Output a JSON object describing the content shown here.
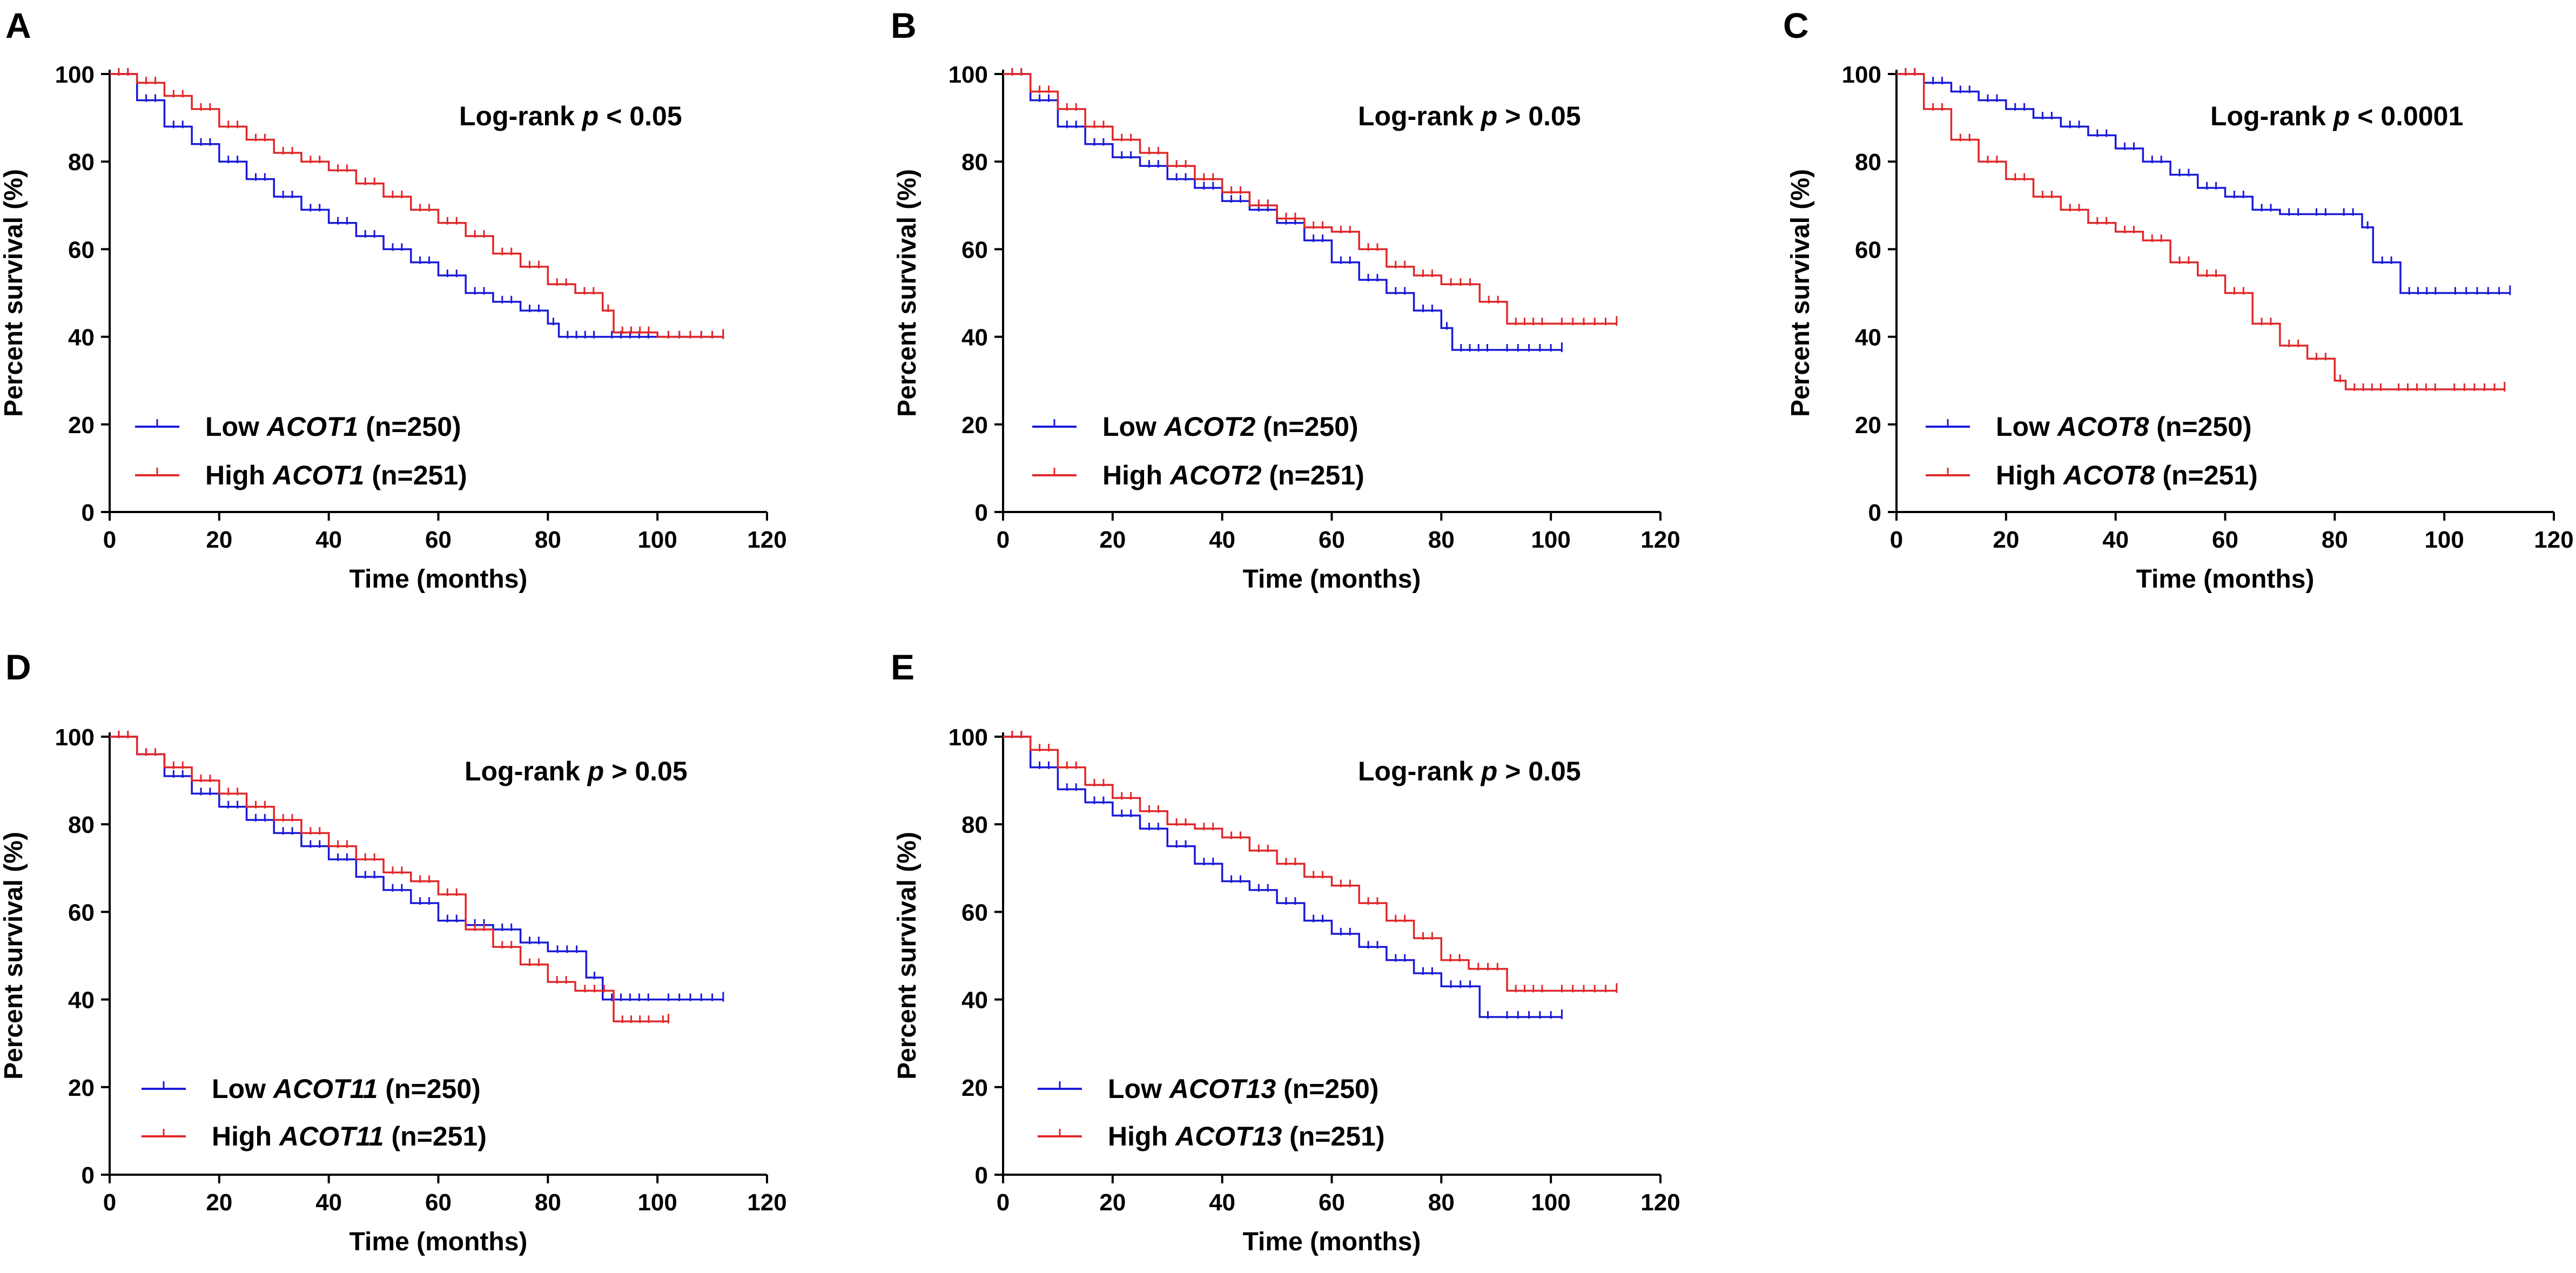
{
  "figure": {
    "colors": {
      "low": "#1a1ad8",
      "high": "#e0282a",
      "axis": "#000000"
    },
    "common": {
      "xlabel": "Time (months)",
      "ylabel": "Percent survival (%)",
      "xticks": [
        "0",
        "20",
        "40",
        "60",
        "80",
        "100",
        "120"
      ],
      "yticks": [
        "0",
        "20",
        "40",
        "60",
        "80",
        "100"
      ]
    }
  },
  "chart_data": [
    {
      "type": "line",
      "panel": "A",
      "title": "",
      "xlabel": "Time (months)",
      "ylabel": "Percent survival (%)",
      "xlim": [
        0,
        120
      ],
      "ylim": [
        0,
        100
      ],
      "annotation": {
        "prefix": "Log-rank ",
        "p": "p",
        "suffix": " < 0.05"
      },
      "series": [
        {
          "name": "Low ACOT1 (n=250)",
          "legend": {
            "prefix": "Low ",
            "gene": "ACOT1",
            "suffix": " (n=250)"
          },
          "color": "#1a1ad8",
          "x": [
            0,
            5,
            10,
            15,
            20,
            25,
            30,
            35,
            40,
            45,
            50,
            55,
            60,
            65,
            70,
            75,
            80,
            82,
            90,
            100,
            112
          ],
          "y": [
            100,
            94,
            88,
            84,
            80,
            76,
            72,
            69,
            66,
            63,
            60,
            57,
            54,
            50,
            48,
            46,
            43,
            40,
            40,
            40,
            40
          ]
        },
        {
          "name": "High ACOT1 (n=251)",
          "legend": {
            "prefix": "High ",
            "gene": "ACOT1",
            "suffix": " (n=251)"
          },
          "color": "#e0282a",
          "x": [
            0,
            5,
            10,
            15,
            20,
            25,
            30,
            35,
            40,
            45,
            50,
            55,
            60,
            65,
            70,
            75,
            80,
            85,
            90,
            92,
            100,
            112
          ],
          "y": [
            100,
            98,
            95,
            92,
            88,
            85,
            82,
            80,
            78,
            75,
            72,
            69,
            66,
            63,
            59,
            56,
            52,
            50,
            46,
            41,
            40,
            40
          ]
        }
      ]
    },
    {
      "type": "line",
      "panel": "B",
      "title": "",
      "xlabel": "Time (months)",
      "ylabel": "Percent survival (%)",
      "xlim": [
        0,
        120
      ],
      "ylim": [
        0,
        100
      ],
      "annotation": {
        "prefix": "Log-rank ",
        "p": "p",
        "suffix": " > 0.05"
      },
      "series": [
        {
          "name": "Low ACOT2 (n=250)",
          "legend": {
            "prefix": "Low ",
            "gene": "ACOT2",
            "suffix": " (n=250)"
          },
          "color": "#1a1ad8",
          "x": [
            0,
            5,
            10,
            15,
            20,
            25,
            30,
            35,
            40,
            45,
            50,
            55,
            60,
            65,
            70,
            75,
            80,
            82,
            90,
            102
          ],
          "y": [
            100,
            94,
            88,
            84,
            81,
            79,
            76,
            74,
            71,
            69,
            66,
            62,
            57,
            53,
            50,
            46,
            42,
            37,
            37,
            37
          ]
        },
        {
          "name": "High ACOT2 (n=251)",
          "legend": {
            "prefix": "High ",
            "gene": "ACOT2",
            "suffix": " (n=251)"
          },
          "color": "#e0282a",
          "x": [
            0,
            5,
            10,
            15,
            20,
            25,
            30,
            35,
            40,
            45,
            50,
            55,
            60,
            65,
            70,
            75,
            80,
            87,
            92,
            100,
            112
          ],
          "y": [
            100,
            96,
            92,
            88,
            85,
            82,
            79,
            76,
            73,
            70,
            67,
            65,
            64,
            60,
            56,
            54,
            52,
            48,
            43,
            43,
            43
          ]
        }
      ]
    },
    {
      "type": "line",
      "panel": "C",
      "title": "",
      "xlabel": "Time (months)",
      "ylabel": "Percent survival (%)",
      "xlim": [
        0,
        120
      ],
      "ylim": [
        0,
        100
      ],
      "annotation": {
        "prefix": "Log-rank ",
        "p": "p",
        "suffix": " < 0.0001"
      },
      "series": [
        {
          "name": "Low ACOT8 (n=250)",
          "legend": {
            "prefix": "Low ",
            "gene": "ACOT8",
            "suffix": " (n=250)"
          },
          "color": "#1a1ad8",
          "x": [
            0,
            5,
            10,
            15,
            20,
            25,
            30,
            35,
            40,
            45,
            50,
            55,
            60,
            65,
            70,
            75,
            80,
            85,
            87,
            92,
            100,
            112
          ],
          "y": [
            100,
            98,
            96,
            94,
            92,
            90,
            88,
            86,
            83,
            80,
            77,
            74,
            72,
            69,
            68,
            68,
            68,
            65,
            57,
            50,
            50,
            50
          ]
        },
        {
          "name": "High ACOT8 (n=251)",
          "legend": {
            "prefix": "High ",
            "gene": "ACOT8",
            "suffix": " (n=251)"
          },
          "color": "#e0282a",
          "x": [
            0,
            5,
            10,
            15,
            20,
            25,
            30,
            35,
            40,
            45,
            50,
            55,
            60,
            65,
            70,
            75,
            80,
            82,
            90,
            100,
            111
          ],
          "y": [
            100,
            92,
            85,
            80,
            76,
            72,
            69,
            66,
            64,
            62,
            57,
            54,
            50,
            43,
            38,
            35,
            30,
            28,
            28,
            28,
            28
          ]
        }
      ]
    },
    {
      "type": "line",
      "panel": "D",
      "title": "",
      "xlabel": "Time (months)",
      "ylabel": "Percent survival (%)",
      "xlim": [
        0,
        120
      ],
      "ylim": [
        0,
        100
      ],
      "annotation": {
        "prefix": "Log-rank ",
        "p": "p",
        "suffix": " > 0.05"
      },
      "series": [
        {
          "name": "Low ACOT11 (n=250)",
          "legend": {
            "prefix": "Low ",
            "gene": "ACOT11",
            "suffix": " (n=250)"
          },
          "color": "#1a1ad8",
          "x": [
            0,
            5,
            10,
            15,
            20,
            25,
            30,
            35,
            40,
            45,
            50,
            55,
            60,
            65,
            70,
            75,
            80,
            87,
            90,
            100,
            112
          ],
          "y": [
            100,
            96,
            91,
            87,
            84,
            81,
            78,
            75,
            72,
            68,
            65,
            62,
            58,
            57,
            56,
            53,
            51,
            45,
            40,
            40,
            40
          ]
        },
        {
          "name": "High ACOT11 (n=251)",
          "legend": {
            "prefix": "High ",
            "gene": "ACOT11",
            "suffix": " (n=251)"
          },
          "color": "#e0282a",
          "x": [
            0,
            5,
            10,
            15,
            20,
            25,
            30,
            35,
            40,
            45,
            50,
            55,
            60,
            65,
            70,
            75,
            80,
            85,
            92,
            100,
            102
          ],
          "y": [
            100,
            96,
            93,
            90,
            87,
            84,
            81,
            78,
            75,
            72,
            69,
            67,
            64,
            56,
            52,
            48,
            44,
            42,
            35,
            35,
            35
          ]
        }
      ]
    },
    {
      "type": "line",
      "panel": "E",
      "title": "",
      "xlabel": "Time (months)",
      "ylabel": "Percent survival (%)",
      "xlim": [
        0,
        120
      ],
      "ylim": [
        0,
        100
      ],
      "annotation": {
        "prefix": "Log-rank ",
        "p": "p",
        "suffix": " > 0.05"
      },
      "series": [
        {
          "name": "Low ACOT13 (n=250)",
          "legend": {
            "prefix": "Low ",
            "gene": "ACOT13",
            "suffix": " (n=250)"
          },
          "color": "#1a1ad8",
          "x": [
            0,
            5,
            10,
            15,
            20,
            25,
            30,
            35,
            40,
            45,
            50,
            55,
            60,
            65,
            70,
            75,
            80,
            87,
            90,
            102
          ],
          "y": [
            100,
            93,
            88,
            85,
            82,
            79,
            75,
            71,
            67,
            65,
            62,
            58,
            55,
            52,
            49,
            46,
            43,
            36,
            36,
            36
          ]
        },
        {
          "name": "High ACOT13 (n=251)",
          "legend": {
            "prefix": "High ",
            "gene": "ACOT13",
            "suffix": " (n=251)"
          },
          "color": "#e0282a",
          "x": [
            0,
            5,
            10,
            15,
            20,
            25,
            30,
            35,
            40,
            45,
            50,
            55,
            60,
            65,
            70,
            75,
            80,
            85,
            92,
            100,
            112
          ],
          "y": [
            100,
            97,
            93,
            89,
            86,
            83,
            80,
            79,
            77,
            74,
            71,
            68,
            66,
            62,
            58,
            54,
            49,
            47,
            42,
            42,
            42
          ]
        }
      ]
    }
  ]
}
